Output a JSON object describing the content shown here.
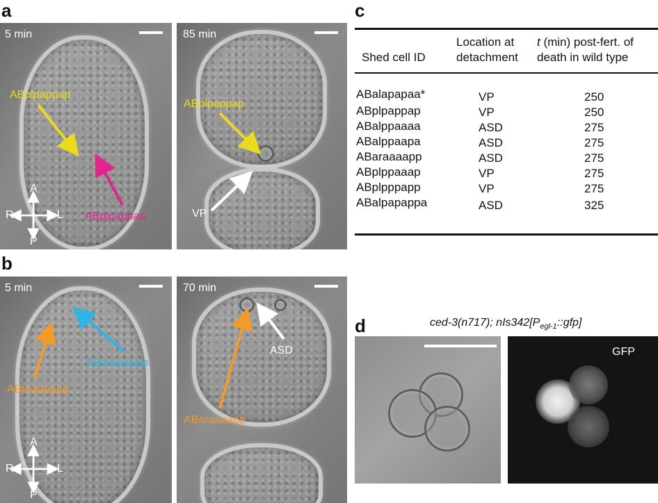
{
  "panels": {
    "a": {
      "letter": "a",
      "left_time": "5 min",
      "right_time": "85 min",
      "left_labels": {
        "yellow": "ABplpappap",
        "magenta": "ABplpappaa"
      },
      "right_labels": {
        "yellow": "ABplpappap",
        "white": "VP"
      },
      "axes": {
        "A": "A",
        "P": "P",
        "R": "R",
        "L": "L"
      }
    },
    "b": {
      "letter": "b",
      "left_time": "5 min",
      "right_time": "70 min",
      "left_labels": {
        "cyan": "ABaraaaapp",
        "orange": "ABaraaaapp"
      },
      "right_labels": {
        "white": "ASD",
        "orange": "ABaraaaapp"
      },
      "axes": {
        "A": "A",
        "P": "P",
        "R": "R",
        "L": "L"
      }
    },
    "c": {
      "letter": "c",
      "headers": {
        "col1": "Shed cell ID",
        "col2_line1": "Location at",
        "col2_line2": "detachment",
        "col3_line1_italic": "t",
        "col3_line1": " (min) post-fert. of",
        "col3_line2": "death in wild type"
      },
      "rows": [
        {
          "id": "ABalapapaa*",
          "location": "VP",
          "time": "250"
        },
        {
          "id": "ABplpappap",
          "location": "VP",
          "time": "250"
        },
        {
          "id": "ABalppaaaa",
          "location": "ASD",
          "time": "275"
        },
        {
          "id": "ABalppaapa",
          "location": "ASD",
          "time": "275"
        },
        {
          "id": "ABaraaaapp",
          "location": "ASD",
          "time": "275"
        },
        {
          "id": "ABplppaaap",
          "location": "VP",
          "time": "275"
        },
        {
          "id": "ABplpppapp",
          "location": "VP",
          "time": "275"
        },
        {
          "id": "ABalpapappa",
          "location": "ASD",
          "time": "325"
        }
      ]
    },
    "d": {
      "letter": "d",
      "title_prefix": "ced-3(n717); nIs342[P",
      "title_sub": "egl-1",
      "title_suffix": "::gfp]",
      "gfp_label": "GFP"
    }
  },
  "colors": {
    "yellow": "#e8dc1c",
    "magenta": "#e0268e",
    "cyan": "#2fb4e6",
    "orange": "#f39a28",
    "white": "#ffffff"
  }
}
